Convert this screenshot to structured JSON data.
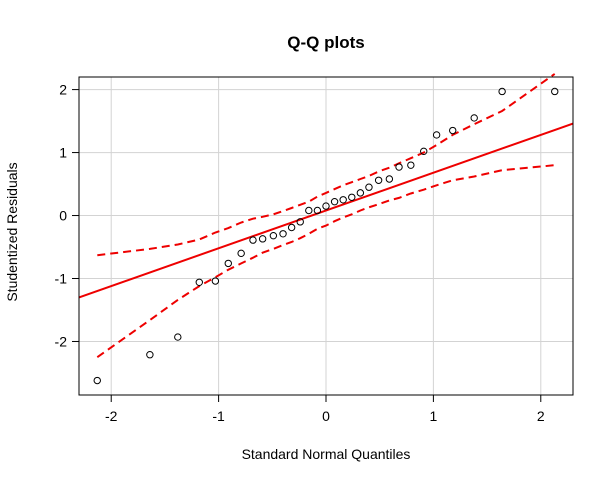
{
  "chart_data": {
    "type": "scatter",
    "title": "Q-Q plots",
    "xlabel": "Standard Normal Quantiles",
    "ylabel": "Studentized Residuals",
    "xlim": [
      -2.3,
      2.3
    ],
    "ylim": [
      -2.85,
      2.2
    ],
    "x_ticks": [
      -2,
      -1,
      0,
      1,
      2
    ],
    "y_ticks": [
      -2,
      -1,
      0,
      1,
      2
    ],
    "x_tick_labels": [
      "-2",
      "-1",
      "0",
      "1",
      "2"
    ],
    "y_tick_labels": [
      "-2",
      "-1",
      "0",
      "1",
      "2"
    ],
    "grid": true,
    "points": {
      "x": [
        -2.13,
        -1.64,
        -1.38,
        -1.18,
        -1.03,
        -0.91,
        -0.79,
        -0.68,
        -0.59,
        -0.49,
        -0.4,
        -0.32,
        -0.24,
        -0.16,
        -0.08,
        0.0,
        0.08,
        0.16,
        0.24,
        0.32,
        0.4,
        0.49,
        0.59,
        0.68,
        0.79,
        0.91,
        1.03,
        1.18,
        1.38,
        1.64,
        2.13
      ],
      "y": [
        -2.62,
        -2.21,
        -1.93,
        -1.06,
        -1.04,
        -0.76,
        -0.6,
        -0.39,
        -0.37,
        -0.32,
        -0.29,
        -0.19,
        -0.1,
        0.08,
        0.08,
        0.15,
        0.22,
        0.25,
        0.29,
        0.36,
        0.45,
        0.56,
        0.58,
        0.77,
        0.8,
        1.02,
        1.28,
        1.35,
        1.55,
        1.97,
        1.97
      ],
      "color": "#000000",
      "marker": "open-circle"
    },
    "reference_line": {
      "color": "#ee0000",
      "style": "solid",
      "slope": 0.6,
      "intercept": 0.08
    },
    "confidence_band": {
      "color": "#ee0000",
      "style": "dashed",
      "upper": {
        "x": [
          -2.13,
          -1.64,
          -1.38,
          -1.18,
          -1.03,
          -0.91,
          -0.79,
          -0.68,
          -0.59,
          -0.49,
          -0.4,
          -0.32,
          -0.24,
          -0.16,
          -0.08,
          0.0,
          0.08,
          0.16,
          0.24,
          0.32,
          0.4,
          0.49,
          0.59,
          0.68,
          0.79,
          0.91,
          1.03,
          1.18,
          1.38,
          1.64,
          2.13
        ],
        "y": [
          -0.63,
          -0.53,
          -0.46,
          -0.38,
          -0.27,
          -0.2,
          -0.11,
          -0.05,
          -0.02,
          0.02,
          0.07,
          0.12,
          0.17,
          0.22,
          0.3,
          0.36,
          0.42,
          0.48,
          0.53,
          0.58,
          0.63,
          0.7,
          0.76,
          0.83,
          0.91,
          1.0,
          1.12,
          1.28,
          1.45,
          1.66,
          2.25
        ]
      },
      "lower": {
        "x": [
          -2.13,
          -1.64,
          -1.38,
          -1.18,
          -1.03,
          -0.91,
          -0.79,
          -0.68,
          -0.59,
          -0.49,
          -0.4,
          -0.32,
          -0.24,
          -0.16,
          -0.08,
          0.0,
          0.08,
          0.16,
          0.24,
          0.32,
          0.4,
          0.49,
          0.59,
          0.68,
          0.79,
          0.91,
          1.03,
          1.18,
          1.38,
          1.64,
          2.13
        ],
        "y": [
          -2.25,
          -1.66,
          -1.34,
          -1.12,
          -0.98,
          -0.86,
          -0.76,
          -0.67,
          -0.59,
          -0.53,
          -0.47,
          -0.42,
          -0.36,
          -0.29,
          -0.21,
          -0.16,
          -0.09,
          -0.03,
          0.02,
          0.08,
          0.13,
          0.18,
          0.24,
          0.28,
          0.35,
          0.41,
          0.48,
          0.56,
          0.62,
          0.72,
          0.8
        ]
      }
    }
  }
}
